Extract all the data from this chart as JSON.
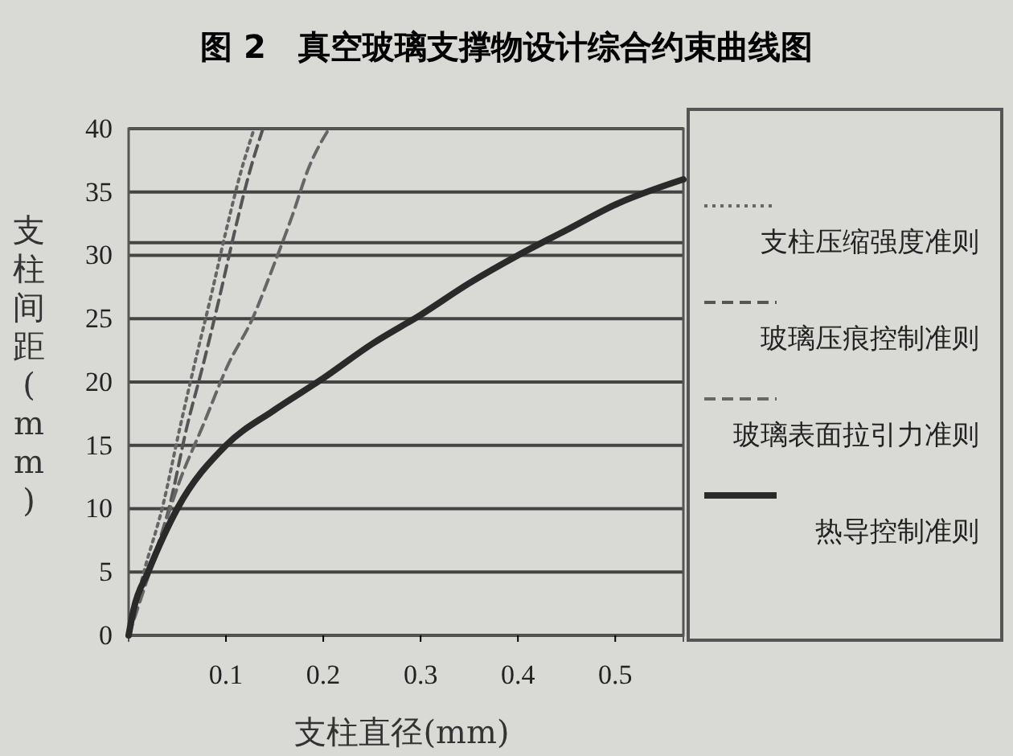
{
  "chart_data": {
    "type": "line",
    "title": "图 2　真空玻璃支撑物设计综合约束曲线图",
    "xlabel": "支柱直径(mm)",
    "ylabel": "支柱间距(mm)",
    "xlim": [
      0,
      0.57
    ],
    "xticks": [
      0.1,
      0.2,
      0.3,
      0.4,
      0.5
    ],
    "ylim": [
      0,
      40
    ],
    "yticks": [
      0,
      5,
      10,
      15,
      20,
      25,
      30,
      35,
      40
    ],
    "grid": "y",
    "legend": "right",
    "ref_lines": [
      {
        "axis": "y",
        "value": 31
      }
    ],
    "series": [
      {
        "name": "支柱压缩强度准则",
        "color": "#666666",
        "line_style": "dotted",
        "x": [
          0,
          0.015,
          0.035,
          0.053,
          0.068,
          0.085,
          0.1,
          0.115,
          0.129
        ],
        "values": [
          0,
          4.8,
          10.2,
          16.5,
          21.5,
          26.9,
          31.9,
          36.5,
          40
        ]
      },
      {
        "name": "玻璃压痕控制准则",
        "color": "#555555",
        "line_style": "dashed",
        "x": [
          0,
          0.02,
          0.042,
          0.06,
          0.077,
          0.094,
          0.109,
          0.124,
          0.138
        ],
        "values": [
          0,
          4.8,
          10.2,
          16.5,
          21.5,
          26.9,
          31.9,
          36.5,
          40
        ]
      },
      {
        "name": "玻璃表面拉引力准则",
        "color": "#666666",
        "line_style": "dashed",
        "x": [
          0,
          0.026,
          0.053,
          0.076,
          0.103,
          0.126,
          0.15,
          0.168,
          0.185,
          0.206
        ],
        "values": [
          0,
          6,
          12.3,
          16.5,
          21.5,
          24.8,
          29.4,
          33.1,
          36.9,
          40
        ]
      },
      {
        "name": "热导控制准则",
        "color": "#2a2a2a",
        "line_style": "solid",
        "x": [
          0,
          0.005,
          0.02,
          0.05,
          0.1,
          0.15,
          0.2,
          0.25,
          0.3,
          0.35,
          0.4,
          0.45,
          0.5,
          0.57
        ],
        "values": [
          0,
          2,
          5,
          10,
          15,
          17.8,
          20.3,
          23,
          25.3,
          27.8,
          30,
          32,
          34,
          36
        ]
      }
    ]
  }
}
